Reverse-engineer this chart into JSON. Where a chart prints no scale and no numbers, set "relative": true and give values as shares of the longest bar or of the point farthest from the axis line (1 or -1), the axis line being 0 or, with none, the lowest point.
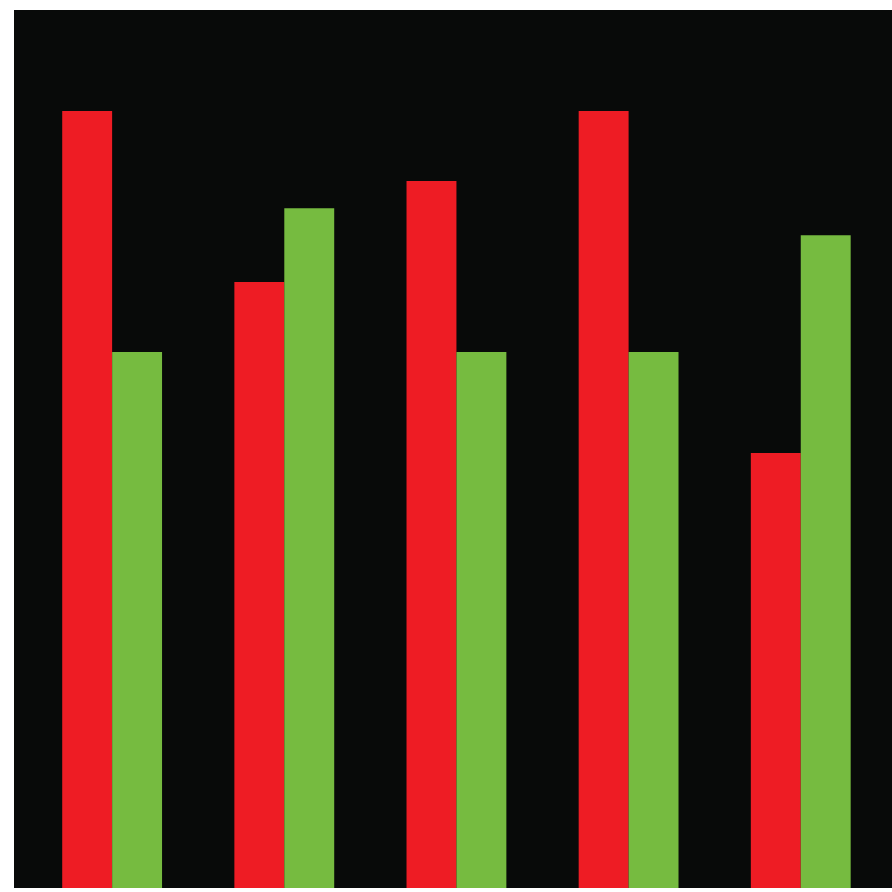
{
  "chart_data": {
    "type": "bar",
    "relative": true,
    "categories": [
      null,
      null,
      null,
      null,
      null
    ],
    "series": [
      {
        "color": "#ee1c24",
        "values": [
          1,
          0.78,
          0.91,
          1,
          0.56
        ]
      },
      {
        "color": "#76bb40",
        "values": [
          0.69,
          0.875,
          0.69,
          0.69,
          0.84
        ]
      }
    ],
    "grid": false,
    "legend": false
  }
}
